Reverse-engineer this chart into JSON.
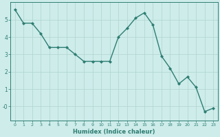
{
  "x": [
    0,
    1,
    2,
    3,
    4,
    5,
    6,
    7,
    8,
    9,
    10,
    11,
    12,
    13,
    14,
    15,
    16,
    17,
    18,
    19,
    20,
    21,
    22,
    23
  ],
  "y": [
    5.6,
    4.8,
    4.8,
    4.2,
    3.4,
    3.4,
    3.4,
    3.0,
    2.6,
    2.6,
    2.6,
    2.6,
    4.0,
    4.5,
    5.1,
    5.4,
    4.7,
    2.9,
    2.2,
    1.3,
    1.7,
    1.1,
    -0.3,
    -0.1
  ],
  "line_color": "#2e7d72",
  "marker": "D",
  "marker_size": 2.0,
  "bg_color": "#cdecea",
  "grid_color": "#b0d4cf",
  "axis_color": "#2e7d72",
  "xlabel": "Humidex (Indice chaleur)",
  "ylim": [
    -0.8,
    6.0
  ],
  "xlim": [
    -0.5,
    23.5
  ],
  "xticks": [
    0,
    1,
    2,
    3,
    4,
    5,
    6,
    7,
    8,
    9,
    10,
    11,
    12,
    13,
    14,
    15,
    16,
    17,
    18,
    19,
    20,
    21,
    22,
    23
  ],
  "yticks": [
    0,
    1,
    2,
    3,
    4,
    5
  ],
  "ytick_labels": [
    "-0",
    "1",
    "2",
    "3",
    "4",
    "5"
  ]
}
